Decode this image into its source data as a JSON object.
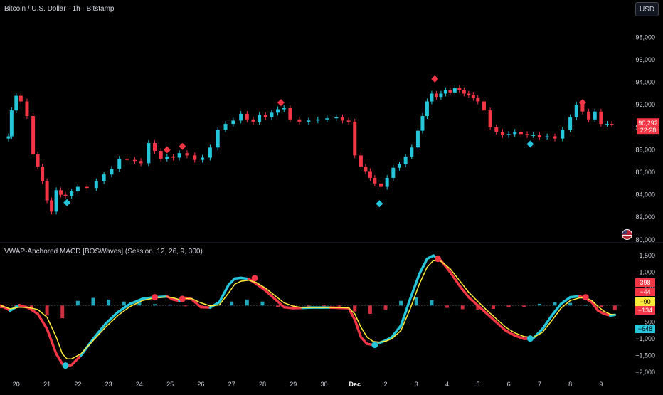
{
  "header": {
    "title": "Bitcoin / U.S. Dollar · 1h · Bitstamp",
    "currency_button": "USD"
  },
  "indicator": {
    "title": "VWAP-Anchored MACD [BOSWaves] (Session, 12, 26, 9, 300)"
  },
  "price_badges": {
    "last_price": "90,292",
    "countdown": "22:28"
  },
  "macd_badges": [
    "398",
    "−44",
    "−90",
    "−134",
    "−648"
  ],
  "colors": {
    "background": "#000000",
    "up": "#26c6da",
    "down": "#f23645",
    "signal": "#ffeb3b",
    "text": "#d1d4dc",
    "badge_yellow": "#ffeb3b",
    "badge_cyan": "#26c6da",
    "badge_red": "#f23645"
  },
  "chart_data": [
    {
      "type": "candlestick",
      "title": "Bitcoin / U.S. Dollar · 1h · Bitstamp",
      "x_ticks": [
        "20",
        "21",
        "22",
        "23",
        "24",
        "25",
        "26",
        "27",
        "28",
        "29",
        "30",
        "Dec",
        "2",
        "3",
        "4",
        "5",
        "6",
        "7",
        "8",
        "9"
      ],
      "y_ticks": [
        "98,000",
        "96,000",
        "94,000",
        "92,000",
        "90,000",
        "88,000",
        "86,000",
        "84,000",
        "82,000",
        "80,000"
      ],
      "ylim": [
        79800,
        99800
      ],
      "x": [
        19.75,
        19.85,
        20.0,
        20.15,
        20.35,
        20.55,
        20.7,
        20.85,
        21.0,
        21.15,
        21.3,
        21.45,
        21.6,
        21.8,
        22.0,
        22.3,
        22.6,
        22.85,
        23.1,
        23.35,
        23.6,
        23.85,
        24.05,
        24.3,
        24.5,
        24.7,
        24.9,
        25.1,
        25.3,
        25.55,
        25.8,
        26.05,
        26.3,
        26.55,
        26.8,
        27.05,
        27.3,
        27.5,
        27.7,
        27.9,
        28.1,
        28.3,
        28.5,
        28.7,
        28.9,
        29.2,
        29.5,
        29.8,
        30.1,
        30.4,
        30.6,
        30.8,
        31.0,
        31.2,
        31.35,
        31.5,
        31.65,
        31.85,
        32.05,
        32.25,
        32.45,
        32.65,
        32.85,
        33.05,
        33.2,
        33.35,
        33.5,
        33.65,
        33.8,
        33.95,
        34.1,
        34.25,
        34.4,
        34.55,
        34.7,
        34.85,
        35.0,
        35.2,
        35.4,
        35.6,
        35.8,
        36.0,
        36.2,
        36.4,
        36.6,
        36.8,
        37.0,
        37.25,
        37.5,
        37.75,
        38.0,
        38.2,
        38.4,
        38.6,
        38.8,
        39.0,
        39.2,
        39.35
      ],
      "close": [
        89200,
        91500,
        92800,
        92300,
        91000,
        87600,
        86500,
        85200,
        83500,
        82500,
        84400,
        84000,
        83900,
        84300,
        84700,
        84600,
        85200,
        85800,
        86300,
        87200,
        87100,
        87000,
        86800,
        88600,
        87900,
        87200,
        87400,
        87300,
        87700,
        87500,
        87100,
        87300,
        88200,
        89800,
        90300,
        90600,
        91200,
        90700,
        90500,
        91100,
        90900,
        91300,
        91600,
        91700,
        90700,
        90500,
        90600,
        90700,
        90800,
        90900,
        90600,
        90500,
        87500,
        86500,
        86100,
        85500,
        85000,
        84700,
        85500,
        86400,
        86700,
        87400,
        88200,
        89700,
        91000,
        92300,
        93000,
        92700,
        93000,
        93300,
        93100,
        93500,
        93300,
        93000,
        92900,
        92600,
        92300,
        91500,
        90000,
        89600,
        89300,
        89400,
        89600,
        89400,
        89300,
        89300,
        89100,
        89200,
        89000,
        89800,
        90900,
        92000,
        91400,
        90700,
        91400,
        90300,
        90300,
        90292
      ],
      "markers": [
        {
          "type": "sell",
          "x": 24.9,
          "price": 88000
        },
        {
          "type": "sell",
          "x": 25.4,
          "price": 88300
        },
        {
          "type": "sell",
          "x": 28.6,
          "price": 92200
        },
        {
          "type": "sell",
          "x": 33.6,
          "price": 94300
        },
        {
          "type": "sell",
          "x": 38.4,
          "price": 92200
        },
        {
          "type": "buy",
          "x": 21.65,
          "price": 83300
        },
        {
          "type": "buy",
          "x": 31.8,
          "price": 83200
        },
        {
          "type": "buy",
          "x": 36.7,
          "price": 88500
        }
      ],
      "last_price": 90292
    },
    {
      "type": "line",
      "title": "VWAP-Anchored MACD [BOSWaves] (Session, 12, 26, 9, 300)",
      "y_ticks": [
        "1,500",
        "1,000",
        "500",
        "0",
        "−500",
        "−1,000",
        "−1,500",
        "−2,000"
      ],
      "ylim": [
        -2150,
        1650
      ],
      "x": [
        19.5,
        19.8,
        20.1,
        20.4,
        20.7,
        21.0,
        21.3,
        21.5,
        21.65,
        21.8,
        22.1,
        22.5,
        22.9,
        23.3,
        23.7,
        24.1,
        24.5,
        24.9,
        25.1,
        25.3,
        25.5,
        25.7,
        26.0,
        26.3,
        26.6,
        26.9,
        27.1,
        27.3,
        27.55,
        27.8,
        28.1,
        28.4,
        28.7,
        29.0,
        29.3,
        29.6,
        29.9,
        30.2,
        30.5,
        30.8,
        31.0,
        31.2,
        31.4,
        31.6,
        31.8,
        32.0,
        32.2,
        32.5,
        32.8,
        33.1,
        33.35,
        33.55,
        33.8,
        34.1,
        34.4,
        34.7,
        35.0,
        35.3,
        35.6,
        35.9,
        36.2,
        36.5,
        36.8,
        37.1,
        37.4,
        37.7,
        38.0,
        38.3,
        38.5,
        38.7,
        38.9,
        39.1,
        39.3,
        39.45
      ],
      "series": [
        {
          "name": "MACD",
          "values": [
            0,
            -150,
            10,
            -70,
            -250,
            -700,
            -1450,
            -1750,
            -1820,
            -1780,
            -1500,
            -1000,
            -550,
            -200,
            50,
            200,
            250,
            270,
            180,
            140,
            230,
            190,
            -50,
            -60,
            100,
            620,
            810,
            830,
            800,
            650,
            450,
            200,
            -50,
            -80,
            -70,
            -60,
            -60,
            -60,
            -70,
            -80,
            -420,
            -950,
            -1150,
            -1180,
            -1120,
            -1050,
            -950,
            -600,
            200,
            950,
            1400,
            1500,
            1350,
            1000,
            600,
            250,
            0,
            -250,
            -500,
            -750,
            -900,
            -1000,
            -980,
            -700,
            -300,
            50,
            250,
            280,
            220,
            100,
            -150,
            -250,
            -300,
            -280
          ]
        },
        {
          "name": "Signal",
          "values": [
            0,
            -100,
            -50,
            -60,
            -120,
            -350,
            -950,
            -1450,
            -1600,
            -1600,
            -1450,
            -1050,
            -650,
            -300,
            -30,
            150,
            230,
            260,
            230,
            180,
            210,
            210,
            80,
            -10,
            20,
            380,
            640,
            730,
            760,
            690,
            520,
            300,
            80,
            -20,
            -60,
            -60,
            -60,
            -60,
            -60,
            -70,
            -250,
            -650,
            -950,
            -1080,
            -1100,
            -1070,
            -1000,
            -750,
            -100,
            650,
            1150,
            1350,
            1330,
            1100,
            750,
            400,
            120,
            -150,
            -400,
            -650,
            -820,
            -930,
            -960,
            -800,
            -450,
            -80,
            150,
            230,
            230,
            150,
            -30,
            -170,
            -260,
            -280
          ]
        }
      ],
      "histogram_x": [
        19.5,
        20.0,
        20.5,
        21.0,
        21.5,
        22.0,
        22.5,
        23.0,
        23.5,
        24.0,
        24.5,
        25.0,
        25.5,
        26.0,
        26.5,
        27.0,
        27.5,
        28.0,
        28.5,
        29.0,
        29.5,
        30.0,
        30.5,
        31.0,
        31.5,
        32.0,
        32.5,
        33.0,
        33.5,
        34.0,
        34.5,
        35.0,
        35.5,
        36.0,
        36.5,
        37.0,
        37.5,
        38.0,
        38.5,
        39.0,
        39.45
      ],
      "histogram": [
        -80,
        -60,
        -90,
        -300,
        -380,
        140,
        230,
        180,
        120,
        90,
        40,
        30,
        -20,
        -50,
        20,
        120,
        180,
        120,
        -40,
        -30,
        -30,
        -20,
        -30,
        -180,
        -250,
        -120,
        140,
        250,
        160,
        -70,
        -110,
        -120,
        -100,
        -60,
        -40,
        50,
        90,
        80,
        20,
        -60,
        -134
      ],
      "markers": [
        {
          "type": "sell",
          "x": 24.5,
          "value": 250
        },
        {
          "type": "sell",
          "x": 25.4,
          "value": 200
        },
        {
          "type": "sell",
          "x": 27.75,
          "value": 820
        },
        {
          "type": "sell",
          "x": 33.7,
          "value": 1400
        },
        {
          "type": "sell",
          "x": 38.5,
          "value": 250
        },
        {
          "type": "buy",
          "x": 21.6,
          "value": -1800
        },
        {
          "type": "buy",
          "x": 31.65,
          "value": -1180
        },
        {
          "type": "buy",
          "x": 36.7,
          "value": -990
        }
      ]
    }
  ]
}
